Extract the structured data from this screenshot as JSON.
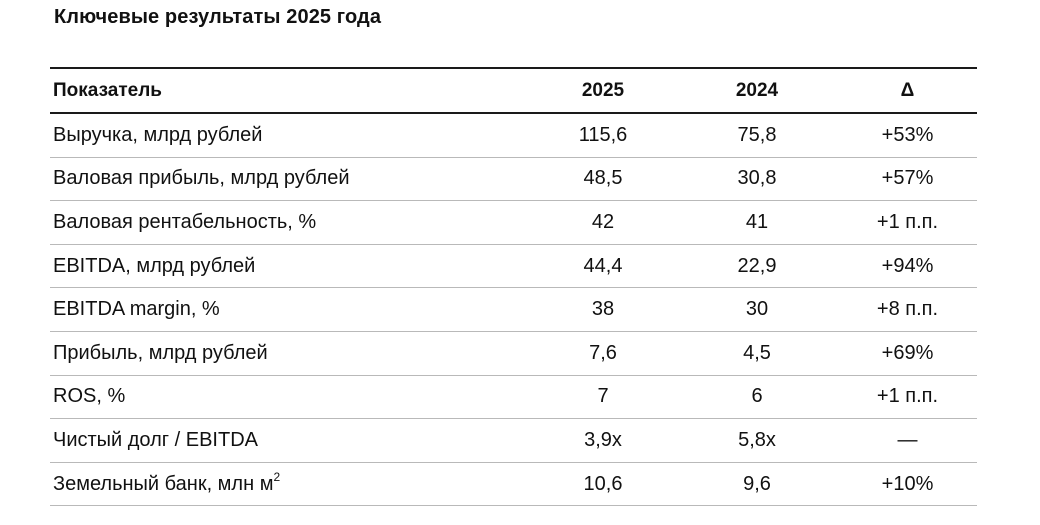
{
  "title": "Ключевые результаты 2025 года",
  "table": {
    "headers": {
      "indicator": "Показатель",
      "y2025": "2025",
      "y2024": "2024",
      "delta": "Δ"
    },
    "rows": [
      {
        "indicator": "Выручка, млрд рублей",
        "y2025": "115,6",
        "y2024": "75,8",
        "delta": "+53%"
      },
      {
        "indicator": "Валовая прибыль, млрд рублей",
        "y2025": "48,5",
        "y2024": "30,8",
        "delta": "+57%"
      },
      {
        "indicator": "Валовая рентабельность, %",
        "y2025": "42",
        "y2024": "41",
        "delta": "+1 п.п."
      },
      {
        "indicator": "EBITDA, млрд рублей",
        "y2025": "44,4",
        "y2024": "22,9",
        "delta": "+94%"
      },
      {
        "indicator": "EBITDA margin, %",
        "y2025": "38",
        "y2024": "30",
        "delta": "+8 п.п."
      },
      {
        "indicator": "Прибыль, млрд рублей",
        "y2025": "7,6",
        "y2024": "4,5",
        "delta": "+69%"
      },
      {
        "indicator": "ROS, %",
        "y2025": "7",
        "y2024": "6",
        "delta": "+1 п.п."
      },
      {
        "indicator": "Чистый долг / EBITDA",
        "y2025": "3,9х",
        "y2024": "5,8х",
        "delta": "—"
      },
      {
        "indicator": "Земельный банк, млн м",
        "indicator_sup": "2",
        "y2025": "10,6",
        "y2024": "9,6",
        "delta": "+10%"
      }
    ]
  }
}
